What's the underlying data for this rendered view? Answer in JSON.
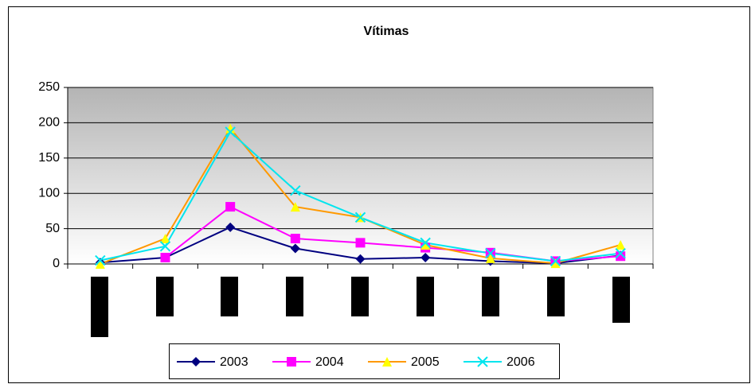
{
  "chart_data": {
    "type": "line",
    "title": "Vítimas",
    "categories": [
      null,
      null,
      null,
      null,
      null,
      null,
      null,
      null,
      null
    ],
    "series": [
      {
        "name": "2003",
        "color": "#000080",
        "marker": "diamond",
        "marker_color": "#000080",
        "values": [
          2,
          9,
          52,
          22,
          7,
          9,
          4,
          1,
          12
        ]
      },
      {
        "name": "2004",
        "color": "#ff00ff",
        "marker": "square",
        "marker_color": "#ff00ff",
        "values": [
          null,
          9,
          81,
          36,
          30,
          23,
          16,
          4,
          11
        ]
      },
      {
        "name": "2005",
        "color": "#ff9900",
        "marker": "triangle",
        "marker_color": "#ffff00",
        "values": [
          0,
          36,
          192,
          81,
          66,
          27,
          8,
          1,
          27
        ]
      },
      {
        "name": "2006",
        "color": "#00e5ee",
        "marker": "x",
        "marker_color": "#00e5ee",
        "values": [
          5,
          25,
          187,
          104,
          66,
          30,
          15,
          4,
          15
        ]
      }
    ],
    "ylim": [
      0,
      250
    ],
    "yticks": [
      0,
      50,
      100,
      150,
      200,
      250
    ],
    "grid": true,
    "legend": "bottom"
  }
}
